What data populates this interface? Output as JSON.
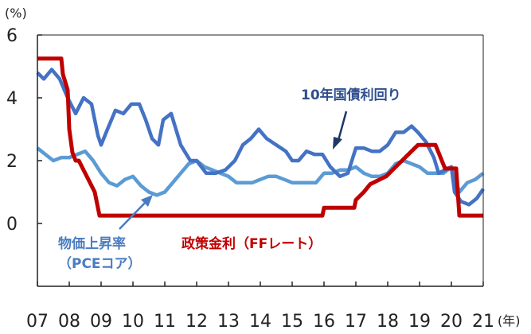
{
  "chart_data": {
    "type": "line",
    "unit_label": "(%)",
    "x_unit_label": "(年)",
    "x_tick_labels": [
      "07",
      "08",
      "09",
      "10",
      "11",
      "12",
      "13",
      "14",
      "15",
      "16",
      "17",
      "18",
      "19",
      "20",
      "21"
    ],
    "y_tick_labels": [
      "6",
      "4",
      "2",
      "0"
    ],
    "xlim": [
      2007.0,
      2021.0
    ],
    "ylim": [
      -2.0,
      6.0
    ],
    "grid": false,
    "legend": "inline annotations",
    "colors": {
      "ff_rate": "#c00000",
      "treasury_10y": "#4472c4",
      "pce_core": "#5b9bd5",
      "axis": "#222222"
    },
    "annotations": {
      "treasury_10y": "10年国債利回り",
      "pce_core_line1": "物価上昇率",
      "pce_core_line2": "（PCEコア）",
      "ff_rate": "政策金利（FFレート）"
    },
    "series": [
      {
        "key": "ff_rate",
        "x": [
          2007.0,
          2007.75,
          2007.8,
          2007.95,
          2008.0,
          2008.1,
          2008.2,
          2008.3,
          2008.8,
          2008.95,
          2009.0,
          2015.95,
          2016.0,
          2016.95,
          2017.0,
          2017.25,
          2017.45,
          2017.95,
          2018.2,
          2018.45,
          2018.7,
          2018.95,
          2019.5,
          2019.6,
          2019.8,
          2020.15,
          2020.25,
          2021.0
        ],
        "y": [
          5.25,
          5.25,
          4.75,
          4.25,
          3.0,
          2.25,
          2.0,
          2.0,
          1.0,
          0.25,
          0.25,
          0.25,
          0.5,
          0.5,
          0.75,
          1.0,
          1.25,
          1.5,
          1.75,
          2.0,
          2.25,
          2.5,
          2.5,
          2.25,
          1.75,
          1.75,
          0.25,
          0.25
        ]
      },
      {
        "key": "treasury_10y",
        "x": [
          2007.0,
          2007.2,
          2007.45,
          2007.7,
          2007.95,
          2008.2,
          2008.45,
          2008.7,
          2008.9,
          2009.0,
          2009.2,
          2009.45,
          2009.7,
          2009.95,
          2010.2,
          2010.4,
          2010.6,
          2010.8,
          2010.95,
          2011.2,
          2011.5,
          2011.8,
          2012.0,
          2012.3,
          2012.6,
          2012.9,
          2013.2,
          2013.45,
          2013.7,
          2013.95,
          2014.2,
          2014.5,
          2014.8,
          2015.0,
          2015.2,
          2015.45,
          2015.7,
          2015.95,
          2016.2,
          2016.5,
          2016.75,
          2017.0,
          2017.25,
          2017.5,
          2017.75,
          2018.0,
          2018.25,
          2018.5,
          2018.75,
          2018.95,
          2019.2,
          2019.45,
          2019.6,
          2019.8,
          2020.0,
          2020.1,
          2020.3,
          2020.55,
          2020.8,
          2021.0
        ],
        "y": [
          4.8,
          4.6,
          4.9,
          4.6,
          4.0,
          3.5,
          4.0,
          3.8,
          2.8,
          2.5,
          3.0,
          3.6,
          3.5,
          3.8,
          3.8,
          3.3,
          2.7,
          2.5,
          3.3,
          3.5,
          2.5,
          2.0,
          2.0,
          1.6,
          1.6,
          1.7,
          2.0,
          2.5,
          2.7,
          3.0,
          2.7,
          2.5,
          2.3,
          2.0,
          2.0,
          2.3,
          2.2,
          2.2,
          1.8,
          1.5,
          1.6,
          2.4,
          2.4,
          2.3,
          2.3,
          2.5,
          2.9,
          2.9,
          3.1,
          2.9,
          2.6,
          2.1,
          1.6,
          1.7,
          1.8,
          1.0,
          0.7,
          0.6,
          0.8,
          1.1
        ]
      },
      {
        "key": "pce_core",
        "x": [
          2007.0,
          2007.25,
          2007.5,
          2007.75,
          2008.0,
          2008.25,
          2008.5,
          2008.75,
          2009.0,
          2009.25,
          2009.5,
          2009.75,
          2010.0,
          2010.25,
          2010.5,
          2010.75,
          2011.0,
          2011.25,
          2011.5,
          2011.75,
          2012.0,
          2012.25,
          2012.5,
          2012.75,
          2013.0,
          2013.25,
          2013.5,
          2013.75,
          2014.0,
          2014.25,
          2014.5,
          2014.75,
          2015.0,
          2015.25,
          2015.5,
          2015.75,
          2016.0,
          2016.25,
          2016.5,
          2016.75,
          2017.0,
          2017.25,
          2017.5,
          2017.75,
          2018.0,
          2018.25,
          2018.5,
          2018.75,
          2019.0,
          2019.25,
          2019.5,
          2019.75,
          2020.0,
          2020.25,
          2020.5,
          2020.75,
          2021.0
        ],
        "y": [
          2.4,
          2.2,
          2.0,
          2.1,
          2.1,
          2.2,
          2.3,
          2.0,
          1.6,
          1.3,
          1.2,
          1.4,
          1.5,
          1.2,
          1.0,
          0.9,
          1.0,
          1.3,
          1.6,
          1.9,
          2.0,
          1.8,
          1.7,
          1.6,
          1.5,
          1.3,
          1.3,
          1.3,
          1.4,
          1.5,
          1.5,
          1.4,
          1.3,
          1.3,
          1.3,
          1.3,
          1.6,
          1.6,
          1.7,
          1.7,
          1.8,
          1.6,
          1.5,
          1.5,
          1.6,
          1.9,
          2.0,
          1.9,
          1.8,
          1.6,
          1.6,
          1.6,
          1.8,
          1.0,
          1.3,
          1.4,
          1.6
        ]
      }
    ]
  }
}
